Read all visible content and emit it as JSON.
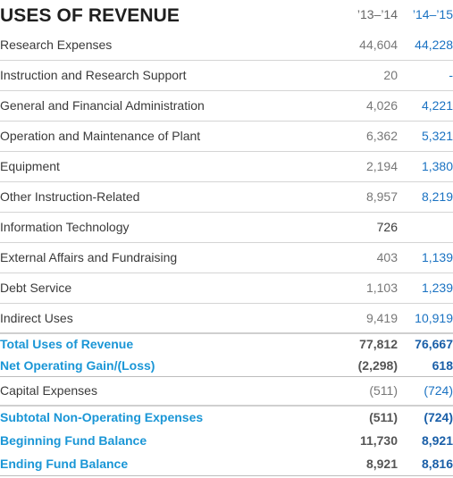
{
  "title": "USES OF REVENUE",
  "columns": [
    "’13–’14",
    "’14–’15"
  ],
  "rows": [
    {
      "label": "Research Expenses",
      "v1": "44,604",
      "v2": "44,228"
    },
    {
      "label": "Instruction and Research Support",
      "v1": "20",
      "v2": "-"
    },
    {
      "label": "General and Financial Administration",
      "v1": "4,026",
      "v2": "4,221"
    },
    {
      "label": "Operation and Maintenance of Plant",
      "v1": "6,362",
      "v2": "5,321"
    },
    {
      "label": "Equipment",
      "v1": "2,194",
      "v2": "1,380"
    },
    {
      "label": "Other Instruction-Related",
      "v1": "8,957",
      "v2": "8,219"
    },
    {
      "label": "Information Technology",
      "v1": "726",
      "v2": ""
    },
    {
      "label": "External Affairs and Fundraising",
      "v1": "403",
      "v2": "1,139"
    },
    {
      "label": "Debt Service",
      "v1": "1,103",
      "v2": "1,239"
    },
    {
      "label": "Indirect Uses",
      "v1": "9,419",
      "v2": "10,919"
    }
  ],
  "totals": [
    {
      "label": "Total Uses of Revenue",
      "v1": "77,812",
      "v2": "76,667"
    },
    {
      "label": "Net Operating Gain/(Loss)",
      "v1": "(2,298)",
      "v2": "618"
    }
  ],
  "capital": {
    "label": "Capital Expenses",
    "v1": "(511)",
    "v2": "(724)"
  },
  "summary": [
    {
      "label": "Subtotal Non-Operating Expenses",
      "v1": "(511)",
      "v2": "(724)"
    },
    {
      "label": "Beginning Fund Balance",
      "v1": "11,730",
      "v2": "8,921"
    },
    {
      "label": "Ending Fund Balance",
      "v1": "8,921",
      "v2": "8,816"
    }
  ]
}
